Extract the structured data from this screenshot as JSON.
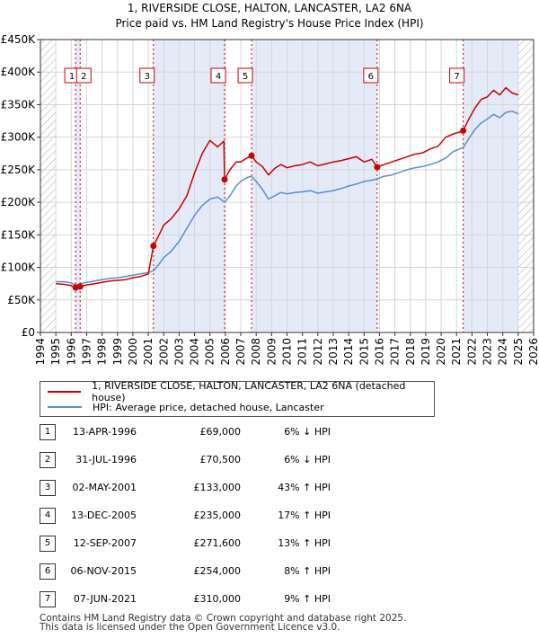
{
  "chart_data": {
    "type": "line",
    "title": "1, RIVERSIDE CLOSE, HALTON, LANCASTER, LA2 6NA",
    "subtitle": "Price paid vs. HM Land Registry's House Price Index (HPI)",
    "xlabel": "",
    "ylabel": "",
    "xlim": [
      1994,
      2026
    ],
    "ylim": [
      0,
      450000
    ],
    "y_ticks": [
      {
        "value": 0,
        "label": "£0"
      },
      {
        "value": 50000,
        "label": "£50K"
      },
      {
        "value": 100000,
        "label": "£100K"
      },
      {
        "value": 150000,
        "label": "£150K"
      },
      {
        "value": 200000,
        "label": "£200K"
      },
      {
        "value": 250000,
        "label": "£250K"
      },
      {
        "value": 300000,
        "label": "£300K"
      },
      {
        "value": 350000,
        "label": "£350K"
      },
      {
        "value": 400000,
        "label": "£400K"
      },
      {
        "value": 450000,
        "label": "£450K"
      }
    ],
    "x_ticks": [
      "1994",
      "1995",
      "1996",
      "1997",
      "1998",
      "1999",
      "2000",
      "2001",
      "2002",
      "2003",
      "2004",
      "2005",
      "2006",
      "2007",
      "2008",
      "2009",
      "2010",
      "2011",
      "2012",
      "2013",
      "2014",
      "2015",
      "2016",
      "2017",
      "2018",
      "2019",
      "2020",
      "2021",
      "2022",
      "2023",
      "2024",
      "2025",
      "2026"
    ],
    "grid": true,
    "colors": {
      "property": "#cc0000",
      "hpi": "#5b8ec9",
      "shade": "#e4eaf8",
      "hatch": "#b5b5b5",
      "vline": "#cc0000"
    },
    "hatched_ranges": [
      [
        1994,
        1995.0
      ],
      [
        2025.0,
        2026
      ]
    ],
    "shaded_ranges": [
      [
        1996.28,
        1996.58
      ],
      [
        2001.33,
        2005.95
      ],
      [
        2007.7,
        2015.85
      ],
      [
        2021.43,
        2025.0
      ]
    ],
    "series": [
      {
        "name": "1, RIVERSIDE CLOSE, HALTON, LANCASTER, LA2 6NA (detached house)",
        "x": [
          1995.0,
          1995.5,
          1996.0,
          1996.28,
          1996.58,
          1997.0,
          1997.5,
          1998.0,
          1998.5,
          1999.0,
          1999.5,
          2000.0,
          2000.5,
          2001.0,
          2001.33,
          2001.7,
          2002.0,
          2002.5,
          2003.0,
          2003.5,
          2004.0,
          2004.5,
          2005.0,
          2005.5,
          2005.9,
          2005.95,
          2006.3,
          2006.7,
          2007.0,
          2007.4,
          2007.7,
          2008.0,
          2008.4,
          2008.8,
          2009.2,
          2009.6,
          2010.0,
          2010.5,
          2011.0,
          2011.5,
          2012.0,
          2012.5,
          2013.0,
          2013.5,
          2014.0,
          2014.5,
          2015.0,
          2015.5,
          2015.85,
          2016.3,
          2016.8,
          2017.3,
          2017.8,
          2018.3,
          2018.8,
          2019.3,
          2019.8,
          2020.3,
          2020.8,
          2021.2,
          2021.43,
          2021.8,
          2022.2,
          2022.6,
          2023.0,
          2023.4,
          2023.8,
          2024.2,
          2024.6,
          2025.0
        ],
        "values": [
          75000,
          74000,
          72000,
          69000,
          70500,
          73000,
          75000,
          77000,
          79000,
          80000,
          81000,
          84000,
          86000,
          90000,
          133000,
          150000,
          165000,
          175000,
          190000,
          210000,
          245000,
          275000,
          295000,
          285000,
          294000,
          235000,
          250000,
          262000,
          262000,
          268000,
          271600,
          262000,
          255000,
          242000,
          252000,
          258000,
          253000,
          256000,
          258000,
          262000,
          256000,
          259000,
          262000,
          264000,
          267000,
          270000,
          262000,
          266000,
          254000,
          258000,
          262000,
          266000,
          270000,
          274000,
          276000,
          282000,
          286000,
          300000,
          305000,
          308000,
          310000,
          328000,
          345000,
          358000,
          362000,
          372000,
          365000,
          376000,
          368000,
          365000
        ]
      },
      {
        "name": "HPI: Average price, detached house, Lancaster",
        "x": [
          1995.0,
          1995.5,
          1996.0,
          1996.28,
          1996.58,
          1997.0,
          1997.5,
          1998.0,
          1998.5,
          1999.0,
          1999.5,
          2000.0,
          2000.5,
          2001.0,
          2001.33,
          2001.7,
          2002.0,
          2002.5,
          2003.0,
          2003.5,
          2004.0,
          2004.5,
          2005.0,
          2005.5,
          2005.95,
          2006.3,
          2006.7,
          2007.0,
          2007.4,
          2007.7,
          2008.0,
          2008.4,
          2008.8,
          2009.2,
          2009.6,
          2010.0,
          2010.5,
          2011.0,
          2011.5,
          2012.0,
          2012.5,
          2013.0,
          2013.5,
          2014.0,
          2014.5,
          2015.0,
          2015.5,
          2015.85,
          2016.3,
          2016.8,
          2017.3,
          2017.8,
          2018.3,
          2018.8,
          2019.3,
          2019.8,
          2020.3,
          2020.8,
          2021.2,
          2021.43,
          2021.8,
          2022.2,
          2022.6,
          2023.0,
          2023.4,
          2023.8,
          2024.2,
          2024.6,
          2025.0
        ],
        "values": [
          78000,
          78000,
          76000,
          73000,
          75000,
          77000,
          79000,
          81000,
          83000,
          84000,
          86000,
          88000,
          90000,
          92000,
          95000,
          105000,
          115000,
          125000,
          140000,
          160000,
          180000,
          195000,
          205000,
          208000,
          200000,
          210000,
          225000,
          232000,
          238000,
          240000,
          232000,
          220000,
          205000,
          210000,
          215000,
          213000,
          215000,
          216000,
          218000,
          214000,
          216000,
          218000,
          221000,
          225000,
          228000,
          232000,
          234000,
          236000,
          240000,
          242000,
          246000,
          250000,
          253000,
          255000,
          258000,
          262000,
          268000,
          278000,
          282000,
          284000,
          298000,
          312000,
          322000,
          328000,
          335000,
          330000,
          338000,
          340000,
          336000
        ]
      }
    ],
    "sales": [
      {
        "label": "1",
        "x": 1996.28,
        "value": 69000
      },
      {
        "label": "2",
        "x": 1996.58,
        "value": 70500
      },
      {
        "label": "3",
        "x": 2001.33,
        "value": 133000
      },
      {
        "label": "4",
        "x": 2005.95,
        "value": 235000
      },
      {
        "label": "5",
        "x": 2007.7,
        "value": 271600
      },
      {
        "label": "6",
        "x": 2015.85,
        "value": 254000
      },
      {
        "label": "7",
        "x": 2021.43,
        "value": 310000
      }
    ]
  },
  "legend": {
    "property_label": "1, RIVERSIDE CLOSE, HALTON, LANCASTER, LA2 6NA (detached house)",
    "hpi_label": "HPI: Average price, detached house, Lancaster"
  },
  "sales_table": [
    {
      "num": "1",
      "date": "13-APR-1996",
      "price": "£69,000",
      "hpi": "6% ↓ HPI"
    },
    {
      "num": "2",
      "date": "31-JUL-1996",
      "price": "£70,500",
      "hpi": "6% ↓ HPI"
    },
    {
      "num": "3",
      "date": "02-MAY-2001",
      "price": "£133,000",
      "hpi": "43% ↑ HPI"
    },
    {
      "num": "4",
      "date": "13-DEC-2005",
      "price": "£235,000",
      "hpi": "17% ↑ HPI"
    },
    {
      "num": "5",
      "date": "12-SEP-2007",
      "price": "£271,600",
      "hpi": "13% ↑ HPI"
    },
    {
      "num": "6",
      "date": "06-NOV-2015",
      "price": "£254,000",
      "hpi": "8% ↑ HPI"
    },
    {
      "num": "7",
      "date": "07-JUN-2021",
      "price": "£310,000",
      "hpi": "9% ↑ HPI"
    }
  ],
  "footer": {
    "line1": "Contains HM Land Registry data © Crown copyright and database right 2025.",
    "line2": "This data is licensed under the Open Government Licence v3.0."
  }
}
